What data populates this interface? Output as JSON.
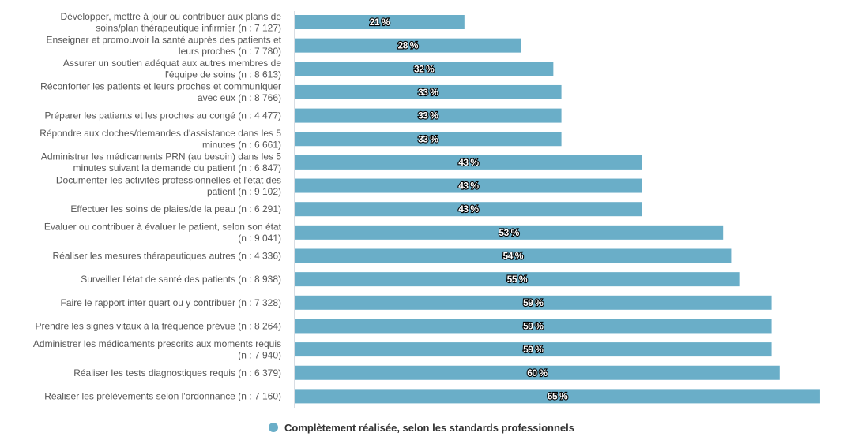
{
  "chart_data": {
    "type": "bar",
    "orientation": "horizontal",
    "title": "",
    "xlabel": "",
    "ylabel": "",
    "xlim": [
      0,
      69
    ],
    "grid": false,
    "legend_position": "bottom-center",
    "bar_color": "#6aaec8",
    "categories": [
      [
        "Développer, mettre à jour ou contribuer aux plans de",
        "soins/plan thérapeutique infirmier (n : 7 127)"
      ],
      [
        "Enseigner et promouvoir la santé auprès des patients et",
        "leurs proches (n : 7 780)"
      ],
      [
        "Assurer un soutien adéquat aux autres membres de",
        "l'équipe de soins (n : 8 613)"
      ],
      [
        "Réconforter les patients et leurs proches et communiquer",
        "avec eux (n : 8 766)"
      ],
      [
        "Préparer les patients et les proches au congé (n : 4 477)"
      ],
      [
        "Répondre aux cloches/demandes d'assistance dans les 5",
        "minutes (n : 6 661)"
      ],
      [
        "Administrer les médicaments PRN (au besoin) dans les 5",
        "minutes suivant la demande du patient (n : 6 847)"
      ],
      [
        "Documenter les activités professionnelles et l'état des",
        "patient (n : 9 102)"
      ],
      [
        "Effectuer les soins de plaies/de la peau (n : 6 291)"
      ],
      [
        "Évaluer ou contribuer à évaluer le patient, selon son état",
        "(n : 9 041)"
      ],
      [
        "Réaliser les mesures thérapeutiques autres (n : 4 336)"
      ],
      [
        "Surveiller l'état de santé des patients (n : 8 938)"
      ],
      [
        "Faire le rapport inter quart ou y contribuer (n : 7 328)"
      ],
      [
        "Prendre les signes vitaux à la fréquence prévue (n : 8 264)"
      ],
      [
        "Administrer les médicaments prescrits aux moments requis",
        "(n : 7 940)"
      ],
      [
        "Réaliser les tests diagnostiques requis (n : 6 379)"
      ],
      [
        "Réaliser les prélèvements selon l'ordonnance (n : 7 160)"
      ]
    ],
    "series": [
      {
        "name": "Complètement réalisée, selon les standards professionnels",
        "values": [
          21,
          28,
          32,
          33,
          33,
          33,
          43,
          43,
          43,
          53,
          54,
          55,
          59,
          59,
          59,
          60,
          65
        ],
        "value_labels": [
          "21 %",
          "28 %",
          "32 %",
          "33 %",
          "33 %",
          "33 %",
          "43 %",
          "43 %",
          "43 %",
          "53 %",
          "54 %",
          "55 %",
          "59 %",
          "59 %",
          "59 %",
          "60 %",
          "65 %"
        ]
      }
    ]
  },
  "legend": {
    "label": "Complètement réalisée, selon les standards professionnels",
    "color": "#6aaec8"
  }
}
